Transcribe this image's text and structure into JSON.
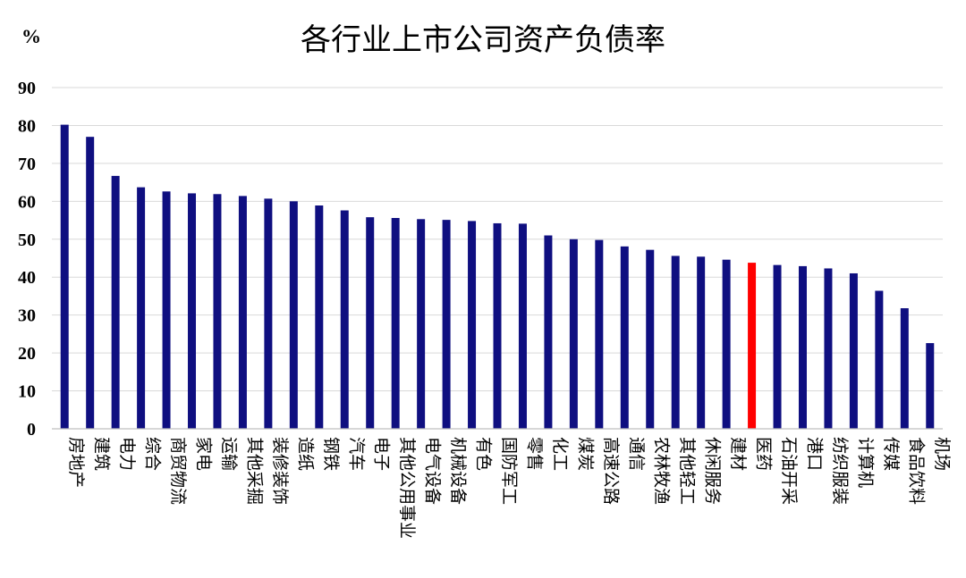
{
  "chart_data": {
    "type": "bar",
    "title": "各行业上市公司资产负债率",
    "ylabel": "%",
    "ylim": [
      0,
      90
    ],
    "yticks": [
      0,
      10,
      20,
      30,
      40,
      50,
      60,
      70,
      80,
      90
    ],
    "grid": true,
    "legend": "none",
    "bar_color": "#0f0f80",
    "highlight_color": "#ff0000",
    "highlight_category": "医药",
    "categories": [
      "房地产",
      "建筑",
      "电力",
      "综合",
      "商贸物流",
      "家电",
      "运输",
      "其他采掘",
      "装修装饰",
      "造纸",
      "钢铁",
      "汽车",
      "电子",
      "其他公用事业",
      "电气设备",
      "机械设备",
      "有色",
      "国防军工",
      "零售",
      "化工",
      "煤炭",
      "高速公路",
      "通信",
      "农林牧渔",
      "其他轻工",
      "休闲服务",
      "建材",
      "医药",
      "石油开采",
      "港口",
      "纺织服装",
      "计算机",
      "传媒",
      "食品饮料",
      "机场"
    ],
    "values": [
      80.2,
      77.0,
      66.7,
      63.7,
      62.6,
      62.1,
      61.9,
      61.4,
      60.7,
      60.0,
      58.9,
      57.6,
      55.8,
      55.6,
      55.3,
      55.1,
      54.8,
      54.2,
      54.1,
      51.0,
      50.0,
      49.8,
      48.1,
      47.2,
      45.6,
      45.4,
      44.6,
      43.8,
      43.2,
      42.9,
      42.3,
      41.0,
      36.4,
      31.8,
      22.6
    ]
  }
}
